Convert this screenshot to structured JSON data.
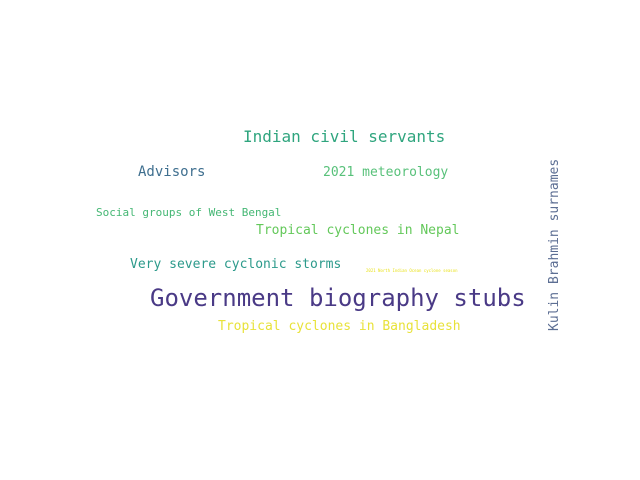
{
  "words": [
    {
      "text": "Government biography stubs",
      "color": "#4a3a86"
    },
    {
      "text": "Indian civil servants",
      "color": "#2fa57e"
    },
    {
      "text": "Advisors",
      "color": "#3f6f8f"
    },
    {
      "text": "2021 meteorology",
      "color": "#58c17a"
    },
    {
      "text": "Social groups of West Bengal",
      "color": "#45b774"
    },
    {
      "text": "Tropical cyclones in Nepal",
      "color": "#63c85a"
    },
    {
      "text": "Very severe cyclonic storms",
      "color": "#2c9a8b"
    },
    {
      "text": "2021 North Indian Ocean cyclone season",
      "color": "#e9e21d"
    },
    {
      "text": "Tropical cyclones in Bangladesh",
      "color": "#e8e23a"
    },
    {
      "text": "Kulin Brahmin surnames",
      "color": "#5c6e93"
    }
  ]
}
